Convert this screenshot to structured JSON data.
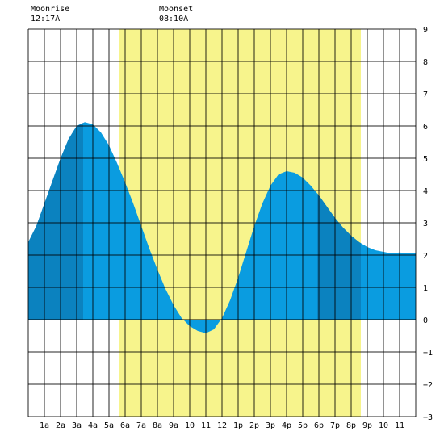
{
  "moon": {
    "rise_label": "Moonrise",
    "rise_time": "12:17A",
    "set_label": "Moonset",
    "set_time": "08:10A"
  },
  "chart_data": {
    "type": "area",
    "x_hours": [
      0,
      0.5,
      1,
      1.5,
      2,
      2.5,
      3,
      3.5,
      4,
      4.5,
      5,
      5.5,
      6,
      6.5,
      7,
      7.5,
      8,
      8.5,
      9,
      9.5,
      10,
      10.5,
      11,
      11.5,
      12,
      12.5,
      13,
      13.5,
      14,
      14.5,
      15,
      15.5,
      16,
      16.5,
      17,
      17.5,
      18,
      18.5,
      19,
      19.5,
      20,
      20.5,
      21,
      21.5,
      22,
      22.5,
      23,
      23.5,
      24
    ],
    "tide_ft": [
      2.4,
      2.9,
      3.6,
      4.3,
      5.0,
      5.6,
      6.0,
      6.12,
      6.05,
      5.8,
      5.4,
      4.85,
      4.25,
      3.6,
      2.9,
      2.2,
      1.55,
      0.95,
      0.45,
      0.05,
      -0.2,
      -0.35,
      -0.42,
      -0.3,
      0.05,
      0.6,
      1.3,
      2.1,
      2.9,
      3.6,
      4.15,
      4.5,
      4.6,
      4.55,
      4.4,
      4.15,
      3.85,
      3.5,
      3.15,
      2.85,
      2.6,
      2.4,
      2.25,
      2.15,
      2.1,
      2.05,
      2.08,
      2.05,
      2.05
    ],
    "ylim": [
      -3,
      9
    ],
    "yticks": [
      -3,
      -2,
      -1,
      0,
      1,
      2,
      3,
      4,
      5,
      6,
      7,
      8,
      9
    ],
    "x_tick_labels": [
      "1a",
      "2a",
      "3a",
      "4a",
      "5a",
      "6a",
      "7a",
      "8a",
      "9a",
      "10",
      "11",
      "12",
      "1p",
      "2p",
      "3p",
      "4p",
      "5p",
      "6p",
      "7p",
      "8p",
      "9p",
      "10",
      "11"
    ],
    "grid": true,
    "daylight_hours": [
      5.6,
      20.6
    ],
    "dark_bands": [
      [
        0,
        3.4
      ],
      [
        17.9,
        20.6
      ]
    ],
    "colors": {
      "daylight": "#f7f48c",
      "tide_fill": "#0a9ce0",
      "tide_dark": "#0b82bf",
      "grid": "#000000",
      "zero_line": "#000000"
    }
  }
}
